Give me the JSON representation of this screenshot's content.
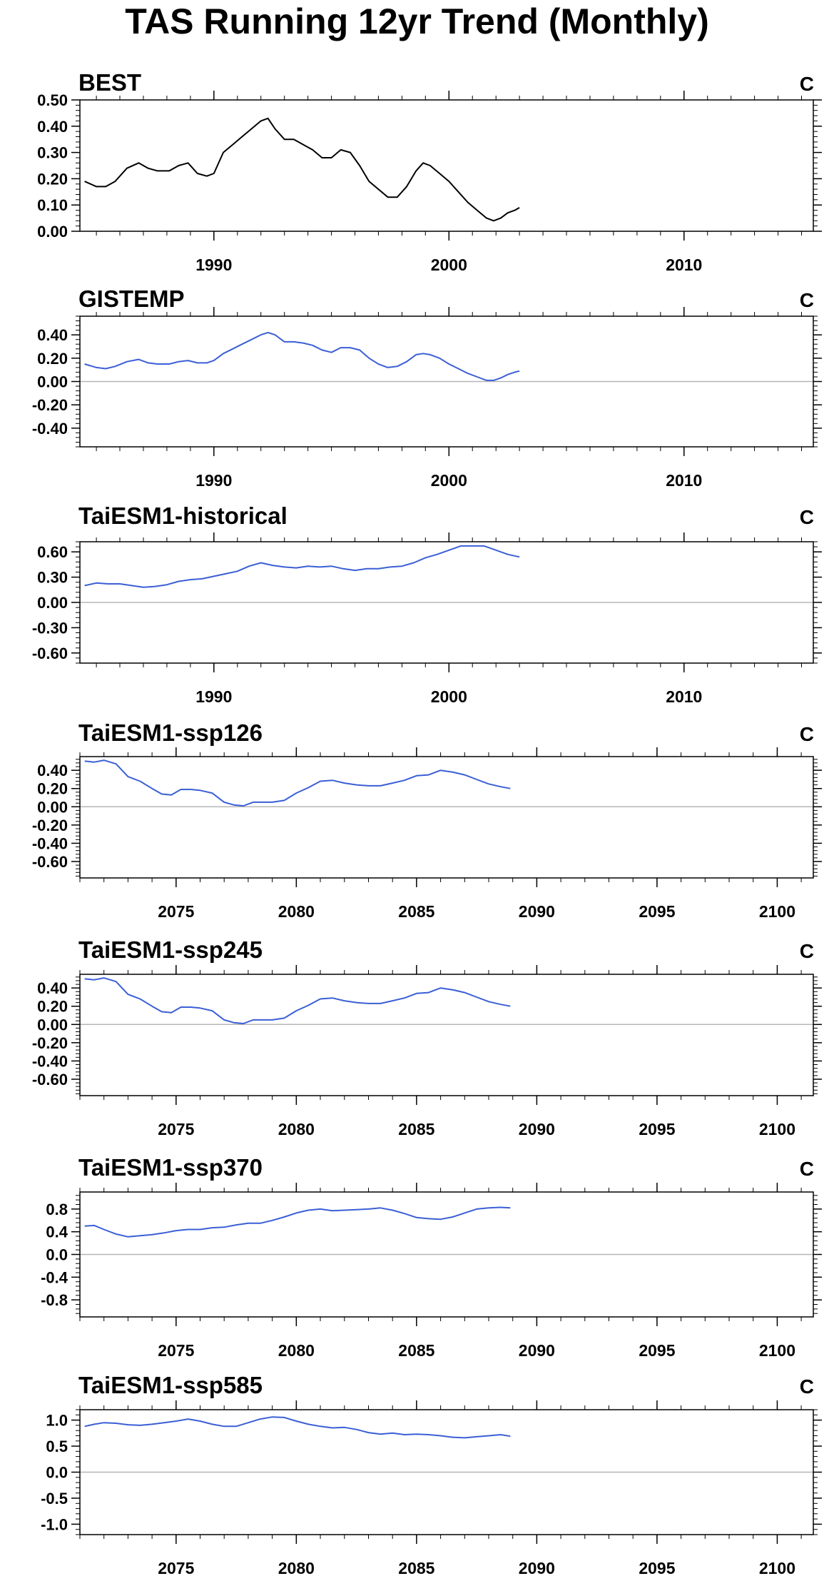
{
  "title": "TAS Running 12yr Trend (Monthly)",
  "colors": {
    "obs_line": "#000000",
    "model_line": "#3b5fd6",
    "zero_line": "#b5b5b5",
    "frame": "#000000"
  },
  "chart_data": [
    {
      "type": "line",
      "title": "BEST",
      "units": "C",
      "xlabel": "",
      "ylabel": "",
      "xlim": [
        1984.3,
        2015.5
      ],
      "ylim": [
        0.0,
        0.5
      ],
      "yticks": [
        0.0,
        0.1,
        0.2,
        0.3,
        0.4,
        0.5
      ],
      "ytick_labels": [
        "0.00",
        "0.10",
        "0.20",
        "0.30",
        "0.40",
        "0.50"
      ],
      "xticks": [
        1990,
        2000,
        2010
      ],
      "xtick_labels": [
        "1990",
        "2000",
        "2010"
      ],
      "zero_line": false,
      "line_color": "#000000",
      "series": [
        {
          "x": [
            1984.5,
            1985.0,
            1985.4,
            1985.8,
            1986.3,
            1986.8,
            1987.2,
            1987.6,
            1988.1,
            1988.5,
            1988.9,
            1989.3,
            1989.7,
            1990.0,
            1990.4,
            1990.8,
            1991.2,
            1991.6,
            1992.0,
            1992.3,
            1992.6,
            1993.0,
            1993.4,
            1993.8,
            1994.2,
            1994.6,
            1995.0,
            1995.4,
            1995.8,
            1996.2,
            1996.6,
            1997.0,
            1997.4,
            1997.8,
            1998.2,
            1998.6,
            1998.9,
            1999.2,
            1999.6,
            2000.0,
            2000.4,
            2000.8,
            2001.2,
            2001.6,
            2001.9,
            2002.2,
            2002.5,
            2002.8,
            2003.0
          ],
          "y": [
            0.19,
            0.17,
            0.17,
            0.19,
            0.24,
            0.26,
            0.24,
            0.23,
            0.23,
            0.25,
            0.26,
            0.22,
            0.21,
            0.22,
            0.3,
            0.33,
            0.36,
            0.39,
            0.42,
            0.43,
            0.39,
            0.35,
            0.35,
            0.33,
            0.31,
            0.28,
            0.28,
            0.31,
            0.3,
            0.25,
            0.19,
            0.16,
            0.13,
            0.13,
            0.17,
            0.23,
            0.26,
            0.25,
            0.22,
            0.19,
            0.15,
            0.11,
            0.08,
            0.05,
            0.04,
            0.05,
            0.07,
            0.08,
            0.09
          ]
        }
      ]
    },
    {
      "type": "line",
      "title": "GISTEMP",
      "units": "C",
      "xlabel": "",
      "ylabel": "",
      "xlim": [
        1984.3,
        2015.5
      ],
      "ylim": [
        -0.56,
        0.56
      ],
      "yticks": [
        -0.4,
        -0.2,
        0.0,
        0.2,
        0.4
      ],
      "ytick_labels": [
        "-0.40",
        "-0.20",
        "0.00",
        "0.20",
        "0.40"
      ],
      "xticks": [
        1990,
        2000,
        2010
      ],
      "xtick_labels": [
        "1990",
        "2000",
        "2010"
      ],
      "zero_line": true,
      "line_color": "#3b5fd6",
      "series": [
        {
          "x": [
            1984.5,
            1985.0,
            1985.4,
            1985.8,
            1986.3,
            1986.8,
            1987.2,
            1987.6,
            1988.1,
            1988.5,
            1988.9,
            1989.3,
            1989.7,
            1990.0,
            1990.4,
            1990.8,
            1991.2,
            1991.6,
            1992.0,
            1992.3,
            1992.6,
            1993.0,
            1993.4,
            1993.8,
            1994.2,
            1994.6,
            1995.0,
            1995.4,
            1995.8,
            1996.2,
            1996.6,
            1997.0,
            1997.4,
            1997.8,
            1998.2,
            1998.6,
            1998.9,
            1999.2,
            1999.6,
            2000.0,
            2000.4,
            2000.8,
            2001.2,
            2001.6,
            2001.9,
            2002.2,
            2002.5,
            2002.8,
            2003.0
          ],
          "y": [
            0.15,
            0.12,
            0.11,
            0.13,
            0.17,
            0.19,
            0.16,
            0.15,
            0.15,
            0.17,
            0.18,
            0.16,
            0.16,
            0.18,
            0.24,
            0.28,
            0.32,
            0.36,
            0.4,
            0.42,
            0.4,
            0.34,
            0.34,
            0.33,
            0.31,
            0.27,
            0.25,
            0.29,
            0.29,
            0.27,
            0.2,
            0.15,
            0.12,
            0.13,
            0.17,
            0.23,
            0.24,
            0.23,
            0.2,
            0.15,
            0.11,
            0.07,
            0.04,
            0.01,
            0.01,
            0.03,
            0.06,
            0.08,
            0.09
          ]
        }
      ]
    },
    {
      "type": "line",
      "title": "TaiESM1-historical",
      "units": "C",
      "xlabel": "",
      "ylabel": "",
      "xlim": [
        1984.3,
        2015.5
      ],
      "ylim": [
        -0.72,
        0.72
      ],
      "yticks": [
        -0.6,
        -0.3,
        0.0,
        0.3,
        0.6
      ],
      "ytick_labels": [
        "-0.60",
        "-0.30",
        "0.00",
        "0.30",
        "0.60"
      ],
      "xticks": [
        1990,
        2000,
        2010
      ],
      "xtick_labels": [
        "1990",
        "2000",
        "2010"
      ],
      "zero_line": true,
      "line_color": "#3b5fd6",
      "series": [
        {
          "x": [
            1984.5,
            1985.0,
            1985.5,
            1986.0,
            1986.5,
            1987.0,
            1987.5,
            1988.0,
            1988.5,
            1989.0,
            1989.5,
            1990.0,
            1990.5,
            1991.0,
            1991.5,
            1992.0,
            1992.5,
            1993.0,
            1993.5,
            1994.0,
            1994.5,
            1995.0,
            1995.5,
            1996.0,
            1996.5,
            1997.0,
            1997.5,
            1998.0,
            1998.5,
            1999.0,
            1999.5,
            2000.0,
            2000.5,
            2001.0,
            2001.5,
            2002.0,
            2002.5,
            2003.0
          ],
          "y": [
            0.2,
            0.23,
            0.22,
            0.22,
            0.2,
            0.18,
            0.19,
            0.21,
            0.25,
            0.27,
            0.28,
            0.31,
            0.34,
            0.37,
            0.43,
            0.47,
            0.44,
            0.42,
            0.41,
            0.43,
            0.42,
            0.43,
            0.4,
            0.38,
            0.4,
            0.4,
            0.42,
            0.43,
            0.47,
            0.53,
            0.57,
            0.62,
            0.67,
            0.67,
            0.67,
            0.62,
            0.57,
            0.54
          ]
        }
      ]
    },
    {
      "type": "line",
      "title": "TaiESM1-ssp126",
      "units": "C",
      "xlabel": "",
      "ylabel": "",
      "xlim": [
        2071.0,
        2101.5
      ],
      "ylim": [
        -0.78,
        0.55
      ],
      "yticks": [
        -0.6,
        -0.4,
        -0.2,
        0.0,
        0.2,
        0.4
      ],
      "ytick_labels": [
        "-0.60",
        "-0.40",
        "-0.20",
        "0.00",
        "0.20",
        "0.40"
      ],
      "xticks": [
        2075,
        2080,
        2085,
        2090,
        2095,
        2100
      ],
      "xtick_labels": [
        "2075",
        "2080",
        "2085",
        "2090",
        "2095",
        "2100"
      ],
      "zero_line": true,
      "line_color": "#3b5fd6",
      "series": [
        {
          "x": [
            2071.2,
            2071.6,
            2072.0,
            2072.5,
            2073.0,
            2073.5,
            2074.0,
            2074.4,
            2074.8,
            2075.2,
            2075.6,
            2076.0,
            2076.5,
            2077.0,
            2077.4,
            2077.8,
            2078.2,
            2078.6,
            2079.0,
            2079.5,
            2080.0,
            2080.5,
            2081.0,
            2081.5,
            2082.0,
            2082.5,
            2083.0,
            2083.5,
            2084.0,
            2084.5,
            2085.0,
            2085.5,
            2086.0,
            2086.5,
            2087.0,
            2087.5,
            2088.0,
            2088.5,
            2088.9
          ],
          "y": [
            0.5,
            0.49,
            0.51,
            0.47,
            0.33,
            0.28,
            0.2,
            0.14,
            0.13,
            0.19,
            0.19,
            0.18,
            0.15,
            0.05,
            0.02,
            0.01,
            0.05,
            0.05,
            0.05,
            0.07,
            0.15,
            0.21,
            0.28,
            0.29,
            0.26,
            0.24,
            0.23,
            0.23,
            0.26,
            0.29,
            0.34,
            0.35,
            0.4,
            0.38,
            0.35,
            0.3,
            0.25,
            0.22,
            0.2
          ]
        }
      ]
    },
    {
      "type": "line",
      "title": "TaiESM1-ssp245",
      "units": "C",
      "xlabel": "",
      "ylabel": "",
      "xlim": [
        2071.0,
        2101.5
      ],
      "ylim": [
        -0.78,
        0.55
      ],
      "yticks": [
        -0.6,
        -0.4,
        -0.2,
        0.0,
        0.2,
        0.4
      ],
      "ytick_labels": [
        "-0.60",
        "-0.40",
        "-0.20",
        "0.00",
        "0.20",
        "0.40"
      ],
      "xticks": [
        2075,
        2080,
        2085,
        2090,
        2095,
        2100
      ],
      "xtick_labels": [
        "2075",
        "2080",
        "2085",
        "2090",
        "2095",
        "2100"
      ],
      "zero_line": true,
      "line_color": "#3b5fd6",
      "series": [
        {
          "x": [
            2071.2,
            2071.6,
            2072.0,
            2072.5,
            2073.0,
            2073.5,
            2074.0,
            2074.4,
            2074.8,
            2075.2,
            2075.6,
            2076.0,
            2076.5,
            2077.0,
            2077.4,
            2077.8,
            2078.2,
            2078.6,
            2079.0,
            2079.5,
            2080.0,
            2080.5,
            2081.0,
            2081.5,
            2082.0,
            2082.5,
            2083.0,
            2083.5,
            2084.0,
            2084.5,
            2085.0,
            2085.5,
            2086.0,
            2086.5,
            2087.0,
            2087.5,
            2088.0,
            2088.5,
            2088.9
          ],
          "y": [
            0.5,
            0.49,
            0.51,
            0.47,
            0.33,
            0.28,
            0.2,
            0.14,
            0.13,
            0.19,
            0.19,
            0.18,
            0.15,
            0.05,
            0.02,
            0.01,
            0.05,
            0.05,
            0.05,
            0.07,
            0.15,
            0.21,
            0.28,
            0.29,
            0.26,
            0.24,
            0.23,
            0.23,
            0.26,
            0.29,
            0.34,
            0.35,
            0.4,
            0.38,
            0.35,
            0.3,
            0.25,
            0.22,
            0.2
          ]
        }
      ]
    },
    {
      "type": "line",
      "title": "TaiESM1-ssp370",
      "units": "C",
      "xlabel": "",
      "ylabel": "",
      "xlim": [
        2071.0,
        2101.5
      ],
      "ylim": [
        -1.1,
        1.1
      ],
      "yticks": [
        -0.8,
        -0.4,
        0.0,
        0.4,
        0.8
      ],
      "ytick_labels": [
        "-0.8",
        "-0.4",
        "0.0",
        "0.4",
        "0.8"
      ],
      "xticks": [
        2075,
        2080,
        2085,
        2090,
        2095,
        2100
      ],
      "xtick_labels": [
        "2075",
        "2080",
        "2085",
        "2090",
        "2095",
        "2100"
      ],
      "zero_line": true,
      "line_color": "#3b5fd6",
      "series": [
        {
          "x": [
            2071.2,
            2071.6,
            2072.0,
            2072.5,
            2073.0,
            2073.5,
            2074.0,
            2074.5,
            2075.0,
            2075.5,
            2076.0,
            2076.5,
            2077.0,
            2077.5,
            2078.0,
            2078.5,
            2079.0,
            2079.5,
            2080.0,
            2080.5,
            2081.0,
            2081.5,
            2082.0,
            2082.5,
            2083.0,
            2083.5,
            2084.0,
            2084.5,
            2085.0,
            2085.5,
            2086.0,
            2086.5,
            2087.0,
            2087.5,
            2088.0,
            2088.5,
            2088.9
          ],
          "y": [
            0.5,
            0.51,
            0.44,
            0.36,
            0.31,
            0.33,
            0.35,
            0.38,
            0.42,
            0.44,
            0.44,
            0.47,
            0.48,
            0.52,
            0.55,
            0.55,
            0.6,
            0.66,
            0.73,
            0.78,
            0.8,
            0.77,
            0.78,
            0.79,
            0.8,
            0.82,
            0.78,
            0.72,
            0.65,
            0.63,
            0.62,
            0.66,
            0.73,
            0.8,
            0.82,
            0.83,
            0.82
          ]
        }
      ]
    },
    {
      "type": "line",
      "title": "TaiESM1-ssp585",
      "units": "C",
      "xlabel": "",
      "ylabel": "",
      "xlim": [
        2071.0,
        2101.5
      ],
      "ylim": [
        -1.2,
        1.2
      ],
      "yticks": [
        -1.0,
        -0.5,
        0.0,
        0.5,
        1.0
      ],
      "ytick_labels": [
        "-1.0",
        "-0.5",
        "0.0",
        "0.5",
        "1.0"
      ],
      "xticks": [
        2075,
        2080,
        2085,
        2090,
        2095,
        2100
      ],
      "xtick_labels": [
        "2075",
        "2080",
        "2085",
        "2090",
        "2095",
        "2100"
      ],
      "zero_line": true,
      "line_color": "#3b5fd6",
      "series": [
        {
          "x": [
            2071.2,
            2071.6,
            2072.0,
            2072.5,
            2073.0,
            2073.5,
            2074.0,
            2074.5,
            2075.0,
            2075.5,
            2076.0,
            2076.5,
            2077.0,
            2077.5,
            2078.0,
            2078.5,
            2079.0,
            2079.5,
            2080.0,
            2080.5,
            2081.0,
            2081.5,
            2082.0,
            2082.5,
            2083.0,
            2083.5,
            2084.0,
            2084.5,
            2085.0,
            2085.5,
            2086.0,
            2086.5,
            2087.0,
            2087.5,
            2088.0,
            2088.5,
            2088.9
          ],
          "y": [
            0.88,
            0.92,
            0.95,
            0.94,
            0.91,
            0.9,
            0.92,
            0.95,
            0.98,
            1.02,
            0.98,
            0.92,
            0.88,
            0.88,
            0.95,
            1.02,
            1.06,
            1.05,
            0.98,
            0.92,
            0.88,
            0.85,
            0.86,
            0.82,
            0.76,
            0.73,
            0.75,
            0.72,
            0.73,
            0.72,
            0.7,
            0.67,
            0.66,
            0.68,
            0.7,
            0.72,
            0.69
          ]
        }
      ]
    }
  ]
}
